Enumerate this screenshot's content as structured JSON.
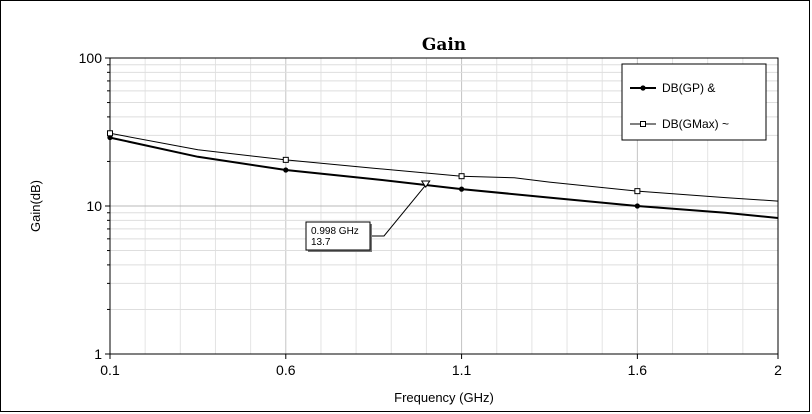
{
  "chart_data": {
    "type": "line",
    "title": "Gain",
    "xlabel": "Frequency (GHz)",
    "ylabel": "Gain(dB)",
    "xlim": [
      0.1,
      2
    ],
    "ylim": [
      1,
      100
    ],
    "y_scale": "log",
    "x_ticks": [
      "0.1",
      "0.6",
      "1.1",
      "1.6",
      "2"
    ],
    "y_ticks": [
      "1",
      "10",
      "100"
    ],
    "grid": true,
    "legend_position": "top-right",
    "series": [
      {
        "name": "DB(GP) &",
        "color": "#000000",
        "marker": "filled-circle",
        "x": [
          0.1,
          0.35,
          0.6,
          0.85,
          1.1,
          1.35,
          1.6,
          1.85,
          2.0
        ],
        "y": [
          29.0,
          21.5,
          17.5,
          15.2,
          13.0,
          11.4,
          10.0,
          9.0,
          8.3
        ],
        "marker_x": [
          0.1,
          0.6,
          1.1,
          1.6
        ]
      },
      {
        "name": "DB(GMax) ~",
        "color": "#000000",
        "marker": "open-square",
        "x": [
          0.1,
          0.35,
          0.6,
          0.85,
          1.1,
          1.25,
          1.35,
          1.6,
          1.85,
          2.0
        ],
        "y": [
          31.0,
          24.0,
          20.5,
          18.0,
          15.9,
          15.5,
          14.5,
          12.6,
          11.4,
          10.8
        ],
        "marker_x": [
          0.1,
          0.6,
          1.1,
          1.6
        ]
      }
    ],
    "annotation": {
      "series": "DB(GP) &",
      "x": 0.998,
      "y": 13.7,
      "line1": "0.998 GHz",
      "line2": "13.7"
    }
  }
}
